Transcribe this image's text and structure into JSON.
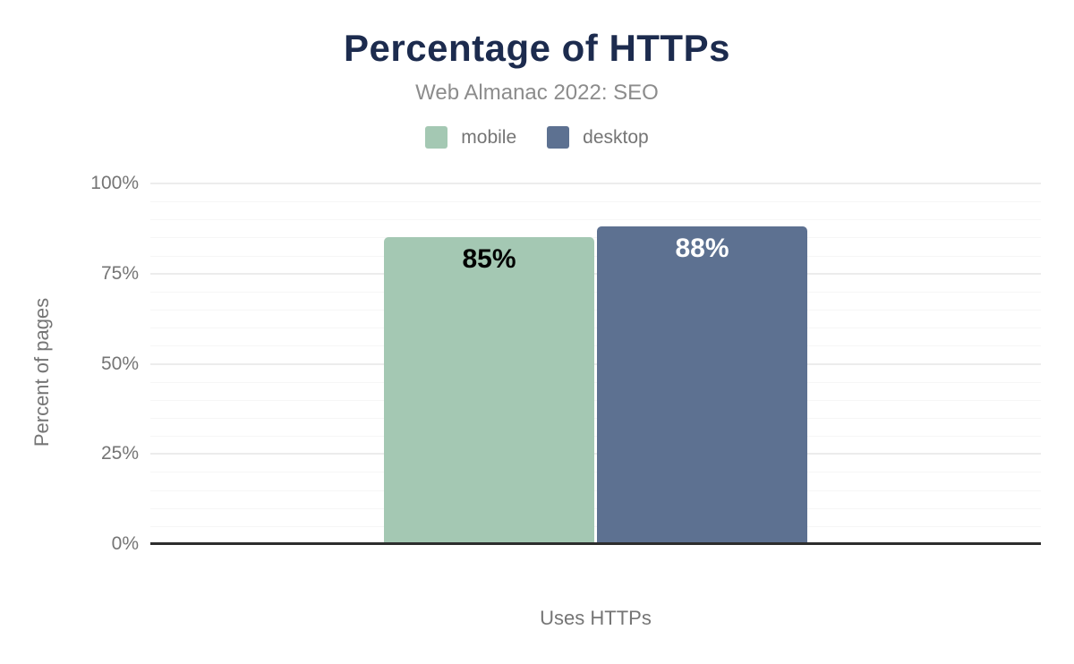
{
  "chart_data": {
    "type": "bar",
    "title": "Percentage of HTTPs",
    "subtitle": "Web Almanac 2022: SEO",
    "xlabel": "Uses HTTPs",
    "ylabel": "Percent of pages",
    "categories": [
      "Uses HTTPs"
    ],
    "series": [
      {
        "name": "mobile",
        "values": [
          85
        ],
        "data_labels": [
          "85%"
        ],
        "color": "#a4c8b3",
        "label_color": "#000000"
      },
      {
        "name": "desktop",
        "values": [
          88
        ],
        "data_labels": [
          "88%"
        ],
        "color": "#5d7191",
        "label_color": "#ffffff"
      }
    ],
    "ylim": [
      0,
      100
    ],
    "yticks": [
      {
        "value": 0,
        "label": "0%"
      },
      {
        "value": 25,
        "label": "25%"
      },
      {
        "value": 50,
        "label": "50%"
      },
      {
        "value": 75,
        "label": "75%"
      },
      {
        "value": 100,
        "label": "100%"
      }
    ],
    "grid": {
      "axis": "y",
      "minor_step": 5,
      "major_step": 25
    },
    "legend_position": "top"
  },
  "colors": {
    "title": "#1c2b4e",
    "subtitle": "#8c8c8c",
    "axis_text": "#757575",
    "grid_major": "#ececec",
    "grid_minor": "#f6f6f6",
    "baseline": "#2d2d2d",
    "background": "#ffffff"
  }
}
